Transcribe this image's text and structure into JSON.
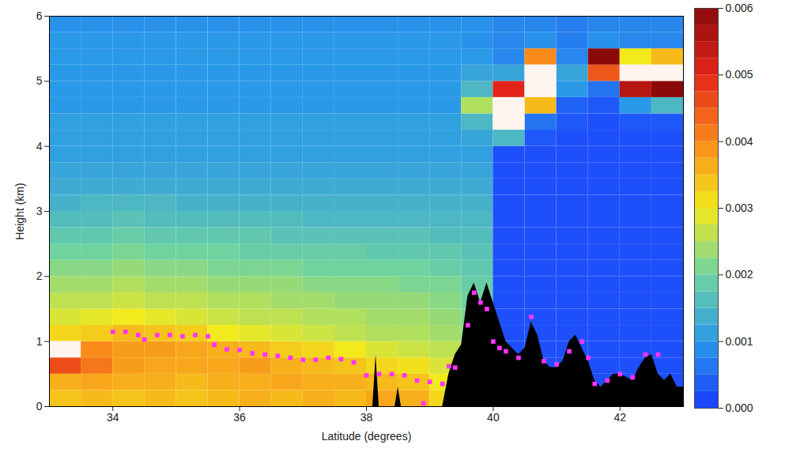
{
  "chart_data": {
    "type": "heatmap",
    "xlabel": "Latitude (degrees)",
    "ylabel": "Height (km)",
    "xlim": [
      33,
      43
    ],
    "ylim": [
      0,
      6
    ],
    "xticks": [
      34,
      36,
      38,
      40,
      42
    ],
    "yticks": [
      0,
      1,
      2,
      3,
      4,
      5,
      6
    ],
    "cells": {
      "x_edges": [
        33,
        33.5,
        34,
        34.5,
        35,
        35.5,
        36,
        36.5,
        37,
        37.5,
        38,
        38.5,
        39,
        39.5,
        40,
        40.5,
        41,
        41.5,
        42,
        42.5,
        43
      ],
      "y_edges": [
        0,
        0.25,
        0.5,
        0.75,
        1,
        1.25,
        1.5,
        1.75,
        2,
        2.25,
        2.5,
        2.75,
        3,
        3.25,
        3.5,
        3.75,
        4,
        4.25,
        4.5,
        4.75,
        5,
        5.25,
        5.5,
        5.75,
        6
      ],
      "values": [
        [
          0.0034,
          0.0035,
          0.0034,
          0.0035,
          0.0034,
          0.0035,
          0.0036,
          0.0035,
          0.0036,
          0.0035,
          0.0037,
          0.0036,
          0.0032,
          0.0026,
          0.0003,
          0.0003,
          0.0003,
          0.0003,
          0.0003,
          0.0003
        ],
        [
          0.0036,
          0.0037,
          0.0036,
          0.0036,
          0.0035,
          0.0036,
          0.0036,
          0.0037,
          0.0036,
          0.0036,
          0.0035,
          0.0034,
          0.003,
          0.0025,
          0.0002,
          0.0002,
          0.0002,
          0.0002,
          0.0002,
          0.0002
        ],
        [
          0.0046,
          0.0042,
          0.0038,
          0.0037,
          0.0037,
          0.0037,
          0.0038,
          0.0036,
          0.0035,
          0.0034,
          0.0032,
          0.0031,
          0.0028,
          0.0024,
          0.0002,
          0.0002,
          0.0002,
          0.0002,
          0.0002,
          0.0002
        ],
        [
          0.0065,
          0.004,
          0.0038,
          0.0038,
          0.0037,
          0.0036,
          0.0035,
          0.0033,
          0.0032,
          0.003,
          0.0028,
          0.0027,
          0.0026,
          0.0023,
          0.0002,
          0.0002,
          0.0002,
          0.0002,
          0.0002,
          0.0002
        ],
        [
          0.0032,
          0.0033,
          0.0035,
          0.0034,
          0.0033,
          0.003,
          0.0029,
          0.0028,
          0.0027,
          0.0026,
          0.0025,
          0.0025,
          0.0024,
          0.0022,
          0.0002,
          0.0002,
          0.0002,
          0.0002,
          0.0002,
          0.0002
        ],
        [
          0.0028,
          0.0029,
          0.003,
          0.0029,
          0.0028,
          0.0027,
          0.0026,
          0.0026,
          0.0025,
          0.0025,
          0.0024,
          0.0024,
          0.0023,
          0.0021,
          0.0002,
          0.0002,
          0.0002,
          0.0002,
          0.0002,
          0.0002
        ],
        [
          0.0026,
          0.0026,
          0.0027,
          0.0026,
          0.0026,
          0.0025,
          0.0025,
          0.0024,
          0.0024,
          0.0023,
          0.0023,
          0.0023,
          0.0022,
          0.002,
          0.0002,
          0.0002,
          0.0002,
          0.0002,
          0.0002,
          0.0002
        ],
        [
          0.0024,
          0.0024,
          0.0025,
          0.0024,
          0.0024,
          0.0023,
          0.0023,
          0.0023,
          0.0022,
          0.0022,
          0.0022,
          0.0021,
          0.0021,
          0.0019,
          0.0002,
          0.0002,
          0.0002,
          0.0002,
          0.0002,
          0.0002
        ],
        [
          0.0022,
          0.0022,
          0.0023,
          0.0022,
          0.0022,
          0.0021,
          0.0021,
          0.0021,
          0.002,
          0.002,
          0.002,
          0.002,
          0.0019,
          0.0018,
          0.0002,
          0.0002,
          0.0002,
          0.0002,
          0.0002,
          0.0002
        ],
        [
          0.002,
          0.002,
          0.0021,
          0.002,
          0.002,
          0.002,
          0.0019,
          0.0019,
          0.0019,
          0.0019,
          0.0018,
          0.0018,
          0.0018,
          0.0017,
          0.0002,
          0.0002,
          0.0002,
          0.0002,
          0.0002,
          0.0002
        ],
        [
          0.0018,
          0.0018,
          0.0019,
          0.0018,
          0.0018,
          0.0018,
          0.0018,
          0.0017,
          0.0017,
          0.0017,
          0.0017,
          0.0017,
          0.0016,
          0.0016,
          0.0002,
          0.0002,
          0.0002,
          0.0002,
          0.0002,
          0.0002
        ],
        [
          0.0016,
          0.0016,
          0.0017,
          0.0016,
          0.0016,
          0.0016,
          0.0016,
          0.0016,
          0.0015,
          0.0015,
          0.0015,
          0.0015,
          0.0015,
          0.0015,
          0.0002,
          0.0002,
          0.0002,
          0.0002,
          0.0002,
          0.0002
        ],
        [
          0.0014,
          0.0015,
          0.0015,
          0.0015,
          0.0014,
          0.0014,
          0.0014,
          0.0014,
          0.0014,
          0.0014,
          0.0014,
          0.0014,
          0.0014,
          0.0014,
          0.0002,
          0.0002,
          0.0002,
          0.0002,
          0.0002,
          0.0002
        ],
        [
          0.0013,
          0.0013,
          0.0013,
          0.0013,
          0.0013,
          0.0013,
          0.0013,
          0.0013,
          0.0013,
          0.0013,
          0.0013,
          0.0013,
          0.0013,
          0.0013,
          0.0002,
          0.0002,
          0.0002,
          0.0002,
          0.0002,
          0.0002
        ],
        [
          0.0012,
          0.0012,
          0.0012,
          0.0012,
          0.0012,
          0.0012,
          0.0012,
          0.0012,
          0.0012,
          0.0012,
          0.0012,
          0.0012,
          0.0012,
          0.0012,
          0.0002,
          0.0002,
          0.0002,
          0.0002,
          0.0002,
          0.0002
        ],
        [
          0.0011,
          0.0011,
          0.0011,
          0.0011,
          0.0011,
          0.0011,
          0.0011,
          0.0011,
          0.0011,
          0.0011,
          0.0011,
          0.0011,
          0.0011,
          0.0011,
          0.0002,
          0.0002,
          0.0002,
          0.0002,
          0.0002,
          0.0002
        ],
        [
          0.0011,
          0.0011,
          0.0011,
          0.0011,
          0.0011,
          0.0011,
          0.0011,
          0.0011,
          0.0011,
          0.0011,
          0.0011,
          0.0011,
          0.0011,
          0.0012,
          0.0015,
          0.0003,
          0.0002,
          0.0002,
          0.0002,
          0.0002
        ],
        [
          0.0011,
          0.0011,
          0.0011,
          0.0011,
          0.0011,
          0.0011,
          0.0011,
          0.0011,
          0.0011,
          0.0011,
          0.0011,
          0.0011,
          0.0011,
          0.0015,
          0.0065,
          0.0006,
          0.0003,
          0.0002,
          0.0003,
          0.0003
        ],
        [
          0.001,
          0.001,
          0.001,
          0.001,
          0.001,
          0.001,
          0.001,
          0.001,
          0.001,
          0.001,
          0.001,
          0.001,
          0.001,
          0.0025,
          0.007,
          0.0035,
          0.0004,
          0.0003,
          0.001,
          0.0015
        ],
        [
          0.001,
          0.001,
          0.001,
          0.001,
          0.001,
          0.001,
          0.001,
          0.001,
          0.001,
          0.001,
          0.001,
          0.001,
          0.001,
          0.0015,
          0.005,
          0.0065,
          0.001,
          0.0006,
          0.0055,
          0.006
        ],
        [
          0.001,
          0.001,
          0.001,
          0.001,
          0.001,
          0.001,
          0.001,
          0.001,
          0.001,
          0.001,
          0.001,
          0.001,
          0.001,
          0.0012,
          0.0012,
          0.007,
          0.0012,
          0.0045,
          0.007,
          0.0065
        ],
        [
          0.001,
          0.001,
          0.001,
          0.001,
          0.001,
          0.001,
          0.001,
          0.001,
          0.001,
          0.001,
          0.001,
          0.001,
          0.001,
          0.001,
          0.0008,
          0.004,
          0.0008,
          0.006,
          0.003,
          0.0035
        ],
        [
          0.001,
          0.001,
          0.001,
          0.001,
          0.001,
          0.001,
          0.001,
          0.001,
          0.001,
          0.001,
          0.001,
          0.001,
          0.001,
          0.0009,
          0.0008,
          0.0009,
          0.0007,
          0.0009,
          0.0008,
          0.0008
        ],
        [
          0.0009,
          0.0009,
          0.0009,
          0.0009,
          0.0009,
          0.0009,
          0.0009,
          0.0009,
          0.0009,
          0.0009,
          0.0009,
          0.0009,
          0.0009,
          0.0009,
          0.0008,
          0.0008,
          0.0007,
          0.0008,
          0.0008,
          0.0008
        ]
      ]
    },
    "colorbar": {
      "range": [
        0,
        0.006
      ],
      "ticks": [
        {
          "value": 0,
          "label": "0.000"
        },
        {
          "value": 0.001,
          "label": "0.001"
        },
        {
          "value": 0.002,
          "label": "0.002"
        },
        {
          "value": 0.003,
          "label": "0.003"
        },
        {
          "value": 0.004,
          "label": "0.004"
        },
        {
          "value": 0.005,
          "label": "0.005"
        },
        {
          "value": 0.006,
          "label": "0.006"
        }
      ],
      "colors": [
        "#1a3cff",
        "#2a9ae8",
        "#6fd3a0",
        "#f2ea1c",
        "#fa8a1a",
        "#e4241a",
        "#8a0a0a"
      ]
    },
    "series": [
      {
        "type": "area",
        "color": "#000000",
        "x": [
          33.0,
          38.1,
          38.15,
          38.2,
          38.45,
          38.5,
          38.55,
          39.2,
          39.3,
          39.4,
          39.5,
          39.6,
          39.7,
          39.8,
          39.9,
          40.0,
          40.1,
          40.2,
          40.3,
          40.4,
          40.5,
          40.6,
          40.7,
          40.8,
          40.9,
          41.0,
          41.1,
          41.2,
          41.3,
          41.4,
          41.5,
          41.6,
          41.7,
          41.8,
          41.9,
          42.0,
          42.2,
          42.3,
          42.4,
          42.5,
          42.6,
          42.7,
          42.8,
          42.9,
          43.0
        ],
        "values": [
          0,
          0,
          0.8,
          0,
          0,
          0.3,
          0,
          0,
          0.5,
          0.8,
          0.95,
          1.7,
          1.9,
          1.6,
          1.9,
          1.6,
          1.3,
          1.0,
          0.9,
          0.8,
          0.9,
          1.3,
          1.1,
          0.7,
          0.6,
          0.6,
          0.7,
          1.0,
          1.1,
          0.9,
          0.7,
          0.4,
          0.3,
          0.4,
          0.5,
          0.5,
          0.4,
          0.6,
          0.75,
          0.8,
          0.5,
          0.4,
          0.5,
          0.3,
          0.3
        ]
      },
      {
        "type": "scatter",
        "color": "#ff33ff",
        "marker": "square",
        "x": [
          34.0,
          34.2,
          34.4,
          34.5,
          34.7,
          34.9,
          35.1,
          35.3,
          35.5,
          35.6,
          35.8,
          36.0,
          36.2,
          36.4,
          36.6,
          36.8,
          37.0,
          37.2,
          37.4,
          37.6,
          37.8,
          38.0,
          38.2,
          38.4,
          38.6,
          38.8,
          38.9,
          39.0,
          39.2,
          39.3,
          39.4,
          39.6,
          39.7,
          39.8,
          39.9,
          40.0,
          40.1,
          40.2,
          40.4,
          40.6,
          40.8,
          41.0,
          41.2,
          41.4,
          41.5,
          41.6,
          41.8,
          42.0,
          42.2,
          42.4,
          42.6
        ],
        "values": [
          1.15,
          1.15,
          1.1,
          1.03,
          1.1,
          1.1,
          1.08,
          1.1,
          1.08,
          0.95,
          0.88,
          0.87,
          0.82,
          0.8,
          0.78,
          0.75,
          0.72,
          0.72,
          0.75,
          0.73,
          0.68,
          0.48,
          0.5,
          0.5,
          0.48,
          0.4,
          0.05,
          0.38,
          0.35,
          0.62,
          0.6,
          1.25,
          1.75,
          1.6,
          1.5,
          1.0,
          0.9,
          0.85,
          0.75,
          1.38,
          0.7,
          0.65,
          0.85,
          1.0,
          0.75,
          0.35,
          0.4,
          0.5,
          0.45,
          0.8,
          0.8
        ]
      }
    ]
  }
}
